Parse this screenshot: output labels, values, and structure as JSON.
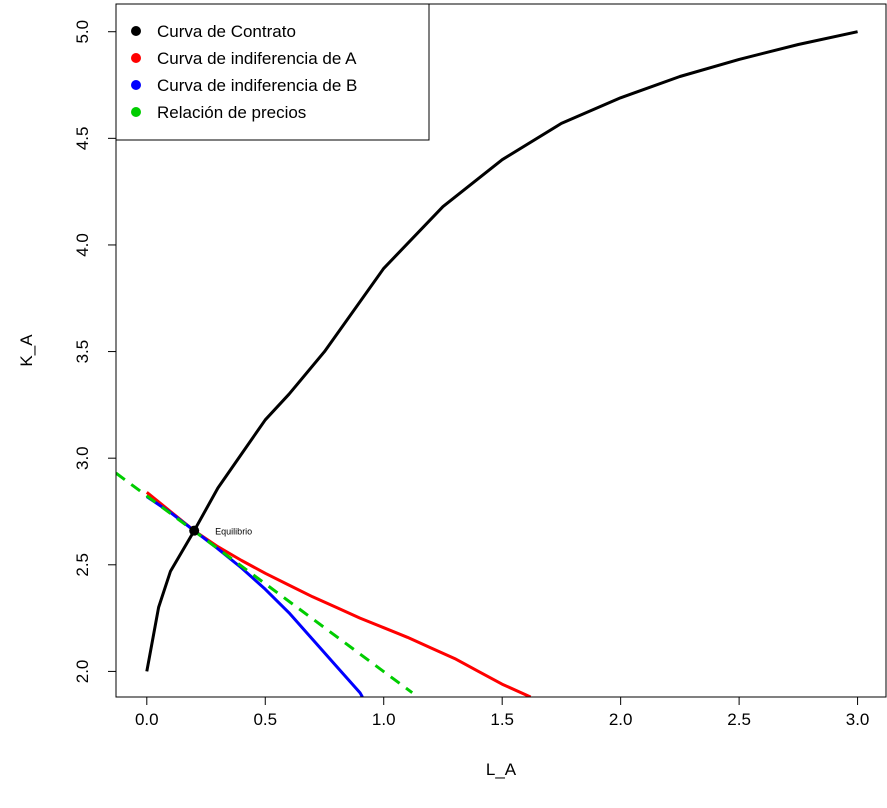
{
  "chart_data": {
    "type": "line",
    "title": "",
    "xlabel": "L_A",
    "ylabel": "K_A",
    "xlim": [
      -0.13,
      3.12
    ],
    "ylim": [
      1.88,
      5.13
    ],
    "x_ticks": [
      0.0,
      0.5,
      1.0,
      1.5,
      2.0,
      2.5,
      3.0
    ],
    "x_tick_labels": [
      "0.0",
      "0.5",
      "1.0",
      "1.5",
      "2.0",
      "2.5",
      "3.0"
    ],
    "y_ticks": [
      2.0,
      2.5,
      3.0,
      3.5,
      4.0,
      4.5,
      5.0
    ],
    "y_tick_labels": [
      "2.0",
      "2.5",
      "3.0",
      "3.5",
      "4.0",
      "4.5",
      "5.0"
    ],
    "grid": false,
    "legend_position": "top-left",
    "legend": [
      {
        "label": "Curva de Contrato",
        "color": "#000000"
      },
      {
        "label": "Curva de indiferencia de A",
        "color": "#ff0000"
      },
      {
        "label": "Curva de indiferencia de B",
        "color": "#0000ff"
      },
      {
        "label": "Relación de precios",
        "color": "#00cd00"
      }
    ],
    "series": [
      {
        "color": "#000000",
        "style": "solid",
        "points": [
          [
            0.0,
            2.0
          ],
          [
            0.05,
            2.3
          ],
          [
            0.1,
            2.47
          ],
          [
            0.2,
            2.66
          ],
          [
            0.3,
            2.86
          ],
          [
            0.4,
            3.02
          ],
          [
            0.5,
            3.18
          ],
          [
            0.6,
            3.3
          ],
          [
            0.75,
            3.5
          ],
          [
            1.0,
            3.89
          ],
          [
            1.25,
            4.18
          ],
          [
            1.5,
            4.4
          ],
          [
            1.75,
            4.57
          ],
          [
            2.0,
            4.69
          ],
          [
            2.25,
            4.79
          ],
          [
            2.5,
            4.87
          ],
          [
            2.75,
            4.94
          ],
          [
            3.0,
            5.0
          ]
        ]
      },
      {
        "color": "#ff0000",
        "style": "solid",
        "points": [
          [
            0.0,
            2.84
          ],
          [
            0.1,
            2.75
          ],
          [
            0.2,
            2.66
          ],
          [
            0.3,
            2.585
          ],
          [
            0.4,
            2.52
          ],
          [
            0.5,
            2.46
          ],
          [
            0.6,
            2.405
          ],
          [
            0.7,
            2.35
          ],
          [
            0.8,
            2.3
          ],
          [
            0.9,
            2.25
          ],
          [
            1.0,
            2.205
          ],
          [
            1.1,
            2.16
          ],
          [
            1.2,
            2.11
          ],
          [
            1.3,
            2.06
          ],
          [
            1.4,
            2.0
          ],
          [
            1.5,
            1.94
          ],
          [
            1.62,
            1.88
          ]
        ]
      },
      {
        "color": "#0000ff",
        "style": "solid",
        "points": [
          [
            0.0,
            2.82
          ],
          [
            0.1,
            2.745
          ],
          [
            0.2,
            2.66
          ],
          [
            0.3,
            2.575
          ],
          [
            0.4,
            2.485
          ],
          [
            0.5,
            2.385
          ],
          [
            0.6,
            2.275
          ],
          [
            0.7,
            2.15
          ],
          [
            0.8,
            2.025
          ],
          [
            0.9,
            1.9
          ],
          [
            0.91,
            1.88
          ]
        ]
      },
      {
        "color": "#00cd00",
        "style": "dashed",
        "points": [
          [
            -0.13,
            2.93
          ],
          [
            1.12,
            1.9
          ]
        ]
      }
    ],
    "equilibrium": {
      "x": 0.2,
      "y": 2.66,
      "label": "Equilibrio"
    }
  }
}
